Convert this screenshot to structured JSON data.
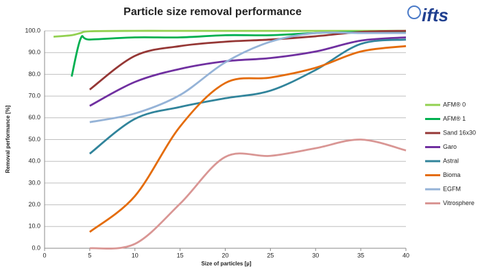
{
  "logo": "ifts",
  "chart_data": {
    "type": "line",
    "title": "Particle size removal performance",
    "x_label": "Size of particles [µ]",
    "y_label": "Removal performance [%]",
    "x": [
      1,
      3,
      4,
      5,
      10,
      15,
      20,
      25,
      30,
      35,
      40
    ],
    "series": [
      {
        "name": "AFM® 0",
        "color": "#92d050",
        "values": [
          97.3,
          98,
          99,
          99.8,
          100,
          100,
          100,
          100,
          100,
          100,
          100
        ]
      },
      {
        "name": "AFM® 1",
        "color": "#00b050",
        "values": [
          null,
          79,
          96.5,
          96,
          97,
          97,
          98,
          98,
          99,
          99.5,
          99.7
        ]
      },
      {
        "name": "Sand 16x30",
        "color": "#953735",
        "values": [
          null,
          null,
          null,
          73,
          88.5,
          93,
          95,
          96,
          97.5,
          99.5,
          100
        ]
      },
      {
        "name": "Garo",
        "color": "#7030a0",
        "values": [
          null,
          null,
          null,
          65.5,
          76.5,
          82.5,
          86,
          87.5,
          90.5,
          95.5,
          97
        ]
      },
      {
        "name": "Astral",
        "color": "#31849b",
        "values": [
          null,
          null,
          null,
          43.5,
          59.5,
          65,
          69,
          72.5,
          82,
          94,
          96
        ]
      },
      {
        "name": "Bioma",
        "color": "#e46c0a",
        "values": [
          null,
          null,
          null,
          7.5,
          24,
          56,
          76,
          78.5,
          83,
          90.5,
          93
        ]
      },
      {
        "name": "EGFM",
        "color": "#95b3d7",
        "values": [
          null,
          null,
          null,
          58,
          62,
          70.5,
          85.5,
          95,
          99,
          99,
          99
        ]
      },
      {
        "name": "Vitrosphere",
        "color": "#d99694",
        "values": [
          null,
          null,
          null,
          0,
          2,
          20.5,
          42,
          42.5,
          46,
          50,
          45
        ]
      }
    ],
    "xlim": [
      0,
      40
    ],
    "xticks": [
      0,
      5,
      10,
      15,
      20,
      25,
      30,
      35,
      40
    ],
    "ylim": [
      0,
      100
    ],
    "yticks": [
      {
        "value": 0,
        "label": "0.0"
      },
      {
        "value": 10,
        "label": "10.0"
      },
      {
        "value": 20,
        "label": "20.0"
      },
      {
        "value": 30,
        "label": "30.0"
      },
      {
        "value": 40,
        "label": "40.0"
      },
      {
        "value": 50,
        "label": "50.0"
      },
      {
        "value": 60,
        "label": "60.0"
      },
      {
        "value": 70,
        "label": "70.0"
      },
      {
        "value": 80,
        "label": "80.0"
      },
      {
        "value": 90,
        "label": "90.0"
      },
      {
        "value": 100,
        "label": "100.0"
      }
    ],
    "grid": true,
    "legend": "right"
  }
}
